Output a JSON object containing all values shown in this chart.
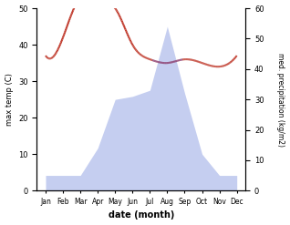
{
  "months": [
    "Jan",
    "Feb",
    "Mar",
    "Apr",
    "May",
    "Jun",
    "Jul",
    "Aug",
    "Sep",
    "Oct",
    "Nov",
    "Dec"
  ],
  "temperature": [
    37,
    42,
    53,
    52,
    50,
    40,
    36,
    35,
    36,
    35,
    34,
    37
  ],
  "precipitation": [
    25,
    25,
    25,
    70,
    150,
    155,
    165,
    270,
    160,
    60,
    25,
    25
  ],
  "temp_color": "#c0392b",
  "precip_fill_color": "#c5cef0",
  "temp_ylim": [
    0,
    50
  ],
  "temp_yticks": [
    0,
    10,
    20,
    30,
    40,
    50
  ],
  "precip_ylim": [
    0,
    300
  ],
  "precip_yticks_vals": [
    0,
    10,
    20,
    30,
    40,
    50,
    60
  ],
  "precip_yticks_labels": [
    "0",
    "10",
    "20",
    "30",
    "40",
    "50",
    "60"
  ],
  "ylabel_left": "max temp (C)",
  "ylabel_right": "med. precipitation (kg/m2)",
  "xlabel": "date (month)",
  "line_color_outside": "#c0392b",
  "line_color_inside": "#8b3a6b",
  "background_color": "#ffffff"
}
